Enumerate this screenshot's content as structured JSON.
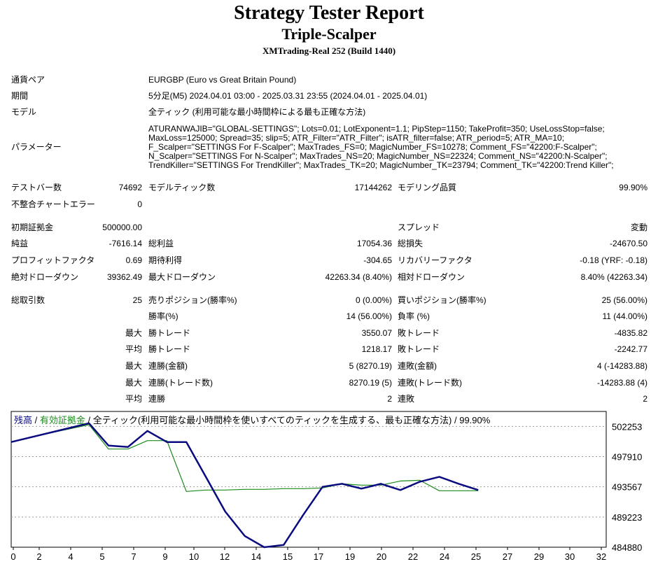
{
  "header": {
    "title": "Strategy Tester Report",
    "subtitle": "Triple-Scalper",
    "server": "XMTrading-Real 252 (Build 1440)"
  },
  "info": {
    "symbol_label": "通貨ペア",
    "symbol_value": "EURGBP (Euro vs Great Britain Pound)",
    "period_label": "期間",
    "period_value": "5分足(M5) 2024.04.01 03:00 - 2025.03.31 23:55 (2024.04.01 - 2025.04.01)",
    "model_label": "モデル",
    "model_value": "全ティック (利用可能な最小時間枠による最も正確な方法)",
    "params_label": "パラメーター",
    "params_lines": [
      "ATURANWAJIB=\"GLOBAL-SETTINGS\"; Lots=0.01; LotExponent=1.1; PipStep=1150; TakeProfit=350; UseLossStop=false;",
      "MaxLoss=125000; Spread=35; slip=5; ATR_Filter=\"ATR_Filter\"; isATR_filter=false; ATR_period=5; ATR_MA=10;",
      "F_Scalper=\"SETTINGS For F-Scalper\"; MaxTrades_FS=0; MagicNumber_FS=10278; Comment_FS=\"42200:F-Scalper\";",
      "N_Scalper=\"SETTINGS For N-Scalper\"; MaxTrades_NS=20; MagicNumber_NS=22324; Comment_NS=\"42200:N-Scalper\";",
      "TrendKiller=\"SETTINGS For TrendKiller\"; MaxTrades_TK=20; MagicNumber_TK=23794; Comment_TK=\"42200:Trend Killer\";"
    ]
  },
  "stats": {
    "bars_label": "テストバー数",
    "bars_value": "74692",
    "ticks_label": "モデルティック数",
    "ticks_value": "17144262",
    "quality_label": "モデリング品質",
    "quality_value": "99.90%",
    "mismatch_label": "不整合チャートエラー",
    "mismatch_value": "0",
    "deposit_label": "初期証拠金",
    "deposit_value": "500000.00",
    "spread_label": "スプレッド",
    "spread_value": "変動",
    "net_label": "純益",
    "net_value": "-7616.14",
    "gross_profit_label": "総利益",
    "gross_profit_value": "17054.36",
    "gross_loss_label": "総損失",
    "gross_loss_value": "-24670.50",
    "pf_label": "プロフィットファクタ",
    "pf_value": "0.69",
    "expected_label": "期待利得",
    "expected_value": "-304.65",
    "recovery_label": "リカバリーファクタ",
    "recovery_value": "-0.18 (YRF: -0.18)",
    "abs_dd_label": "絶対ドローダウン",
    "abs_dd_value": "39362.49",
    "max_dd_label": "最大ドローダウン",
    "max_dd_value": "42263.34 (8.40%)",
    "rel_dd_label": "相対ドローダウン",
    "rel_dd_value": "8.40% (42263.34)",
    "trades_label": "総取引数",
    "trades_value": "25",
    "short_label": "売りポジション(勝率%)",
    "short_value": "0 (0.00%)",
    "long_label": "買いポジション(勝率%)",
    "long_value": "25 (56.00%)",
    "win_rate_label": "勝率(%)",
    "win_rate_value": "14 (56.00%)",
    "loss_rate_label": "負率 (%)",
    "loss_rate_value": "11 (44.00%)",
    "max_word": "最大",
    "avg_word": "平均",
    "win_trade_label": "勝トレード",
    "loss_trade_label": "敗トレード",
    "largest_win_value": "3550.07",
    "largest_loss_value": "-4835.82",
    "avg_win_value": "1218.17",
    "avg_loss_value": "-2242.77",
    "cons_win_amt_label": "連勝(金額)",
    "cons_win_amt_value": "5 (8270.19)",
    "cons_loss_amt_label": "連敗(金額)",
    "cons_loss_amt_value": "4 (-14283.88)",
    "cons_win_cnt_label": "連勝(トレード数)",
    "cons_win_cnt_value": "8270.19 (5)",
    "cons_loss_cnt_label": "連敗(トレード数)",
    "cons_loss_cnt_value": "-14283.88 (4)",
    "avg_cons_win_label": "連勝",
    "avg_cons_win_value": "2",
    "avg_cons_loss_label": "連敗",
    "avg_cons_loss_value": "2"
  },
  "chart_caption": {
    "balance": "残高",
    "sep1": " / ",
    "equity": "有効証拠金",
    "rest": " / 全ティック(利用可能な最小時間枠を使いすべてのティックを生成する、最も正確な方法) / 99.90%"
  },
  "chart_data": {
    "type": "line",
    "x_ticks": [
      0,
      2,
      4,
      5,
      7,
      9,
      10,
      12,
      14,
      15,
      17,
      19,
      20,
      22,
      24,
      25,
      27,
      29,
      30,
      32
    ],
    "y_ticks": [
      502253,
      497910,
      493567,
      489223,
      484880
    ],
    "ylim": [
      484880,
      504400
    ],
    "series": [
      {
        "name": "残高",
        "color": "#0b0b80",
        "x": [
          0,
          4,
          5,
          6,
          7,
          8,
          9,
          10,
          11,
          12,
          13,
          14,
          15,
          16,
          17,
          18,
          19,
          20,
          21,
          22,
          23,
          24
        ],
        "y": [
          500000,
          502700,
          499500,
          499300,
          501600,
          500000,
          500000,
          495000,
          490000,
          486500,
          484880,
          485200,
          489500,
          493567,
          494000,
          493300,
          494000,
          493100,
          494300,
          495000,
          494000,
          493100
        ]
      },
      {
        "name": "有効証拠金",
        "color": "#1a8a1a",
        "x": [
          0,
          2,
          4,
          5,
          6,
          7,
          8,
          9,
          10,
          11,
          12,
          13,
          14,
          15,
          16,
          17,
          18,
          19,
          20,
          21,
          22,
          23,
          24
        ],
        "y": [
          500000,
          501300,
          502500,
          499000,
          499000,
          500200,
          500200,
          492900,
          493100,
          493100,
          493200,
          493200,
          493300,
          493300,
          493400,
          494000,
          493800,
          493800,
          494400,
          494500,
          493000,
          493000,
          493000
        ]
      }
    ]
  }
}
